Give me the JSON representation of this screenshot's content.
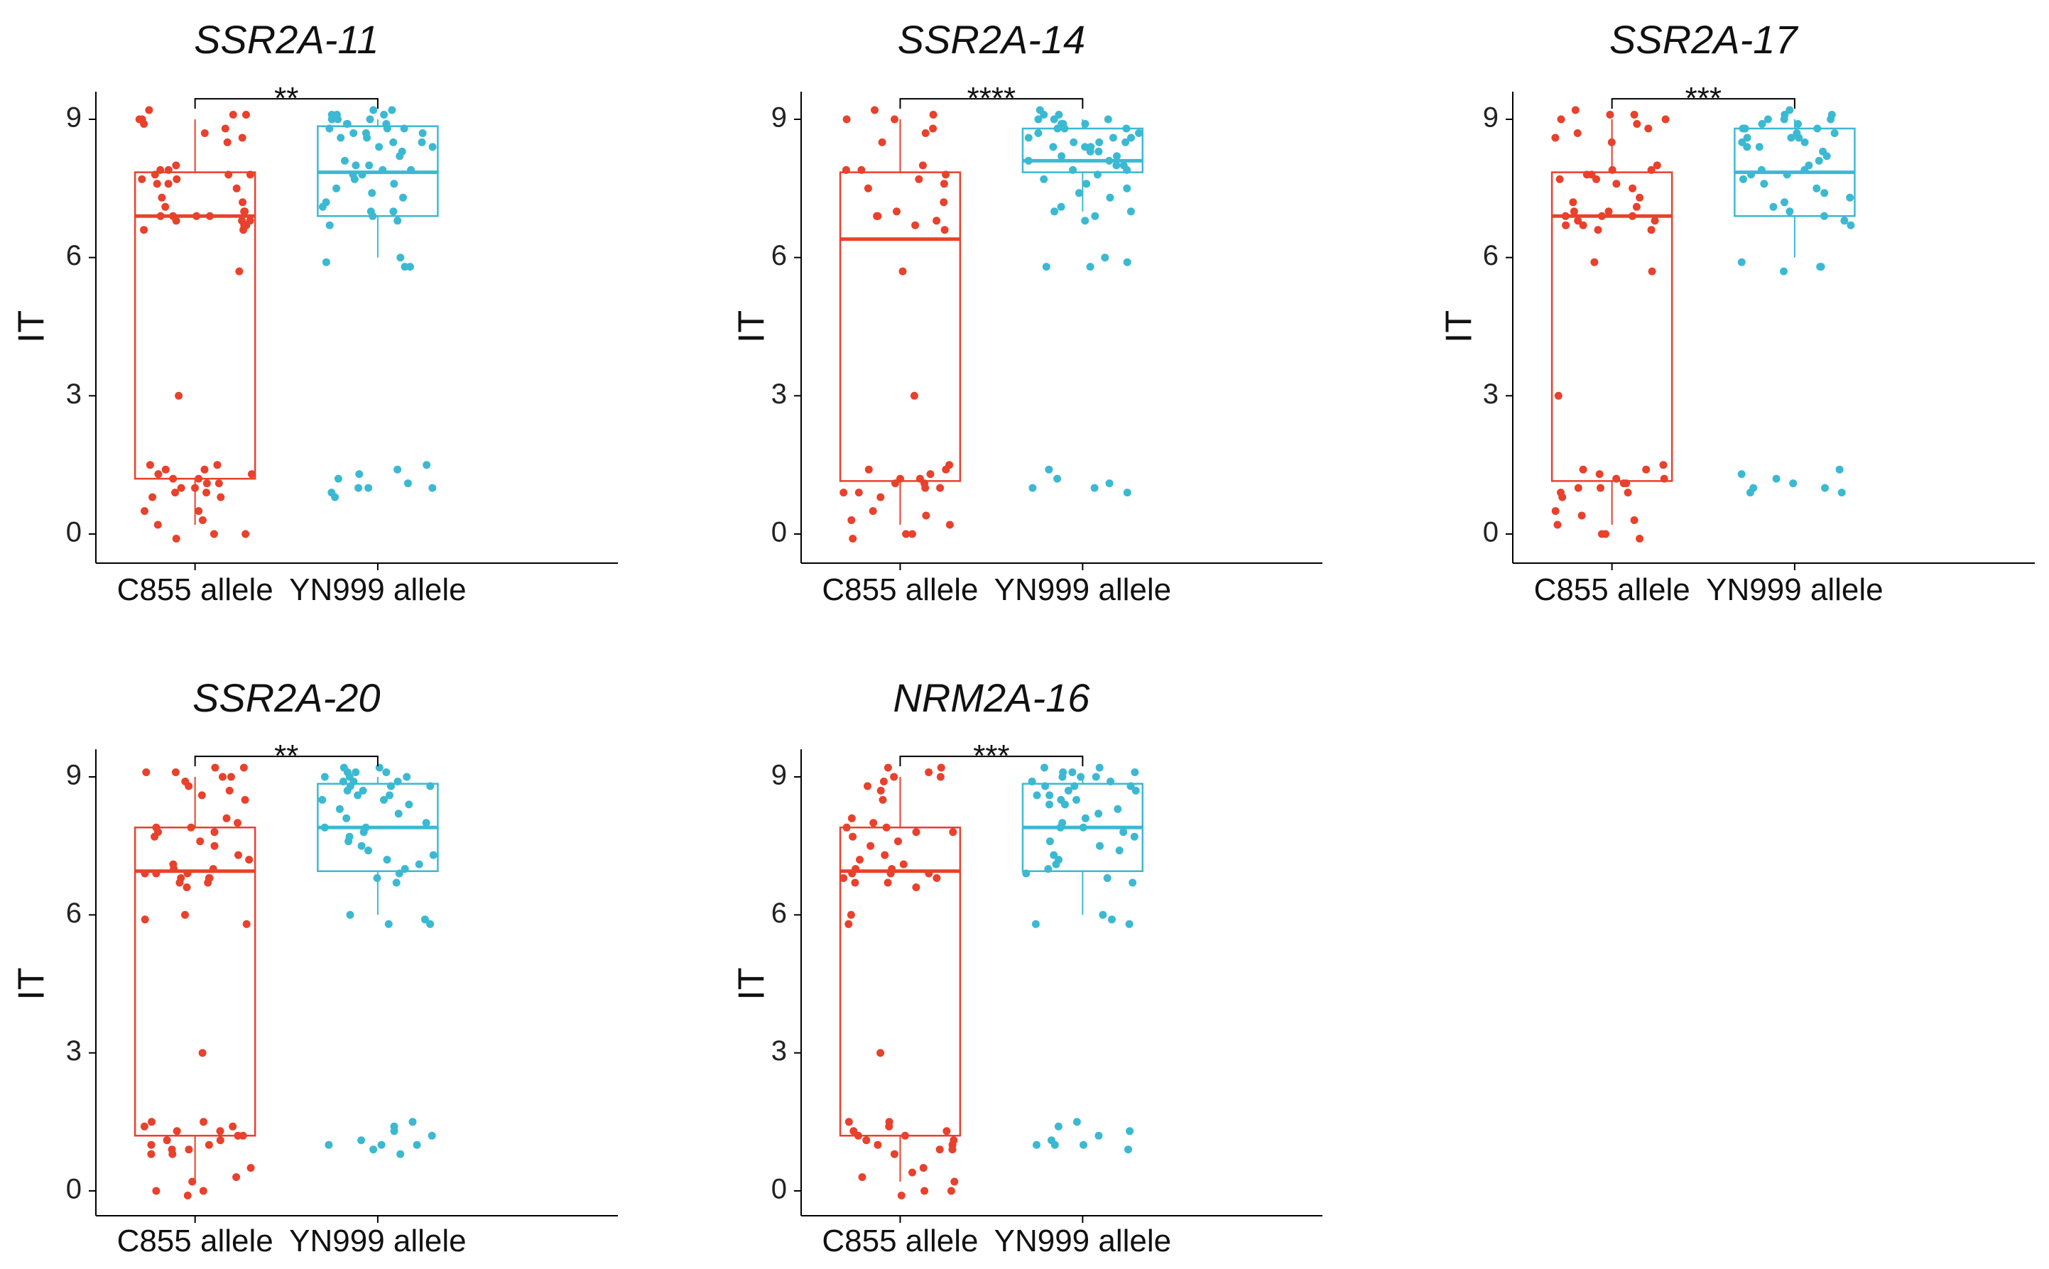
{
  "colors": {
    "c855": "#e8412c",
    "yn999": "#3cb9d2",
    "axis": "#000000"
  },
  "chart_data": [
    {
      "type": "box-jitter",
      "title": "SSR2A-11",
      "ylabel": "IT",
      "categories": [
        "C855 allele",
        "YN999 allele"
      ],
      "ylim": [
        -0.6,
        9.6
      ],
      "yticks": [
        0,
        3,
        6,
        9
      ],
      "significance": "**",
      "boxes": [
        {
          "name": "C855 allele",
          "min": 0.2,
          "q1": 1.2,
          "median": 6.9,
          "q3": 7.85,
          "max": 9.0
        },
        {
          "name": "YN999 allele",
          "min": 6.0,
          "q1": 6.9,
          "median": 7.85,
          "q3": 8.85,
          "max": 9.0
        }
      ],
      "points": [
        [
          9.2,
          9.1,
          9.1,
          9.0,
          9.0,
          8.9,
          8.8,
          8.7,
          8.6,
          8.5,
          8.0,
          7.9,
          7.9,
          7.8,
          7.8,
          7.8,
          7.7,
          7.7,
          7.6,
          7.6,
          7.5,
          7.3,
          7.2,
          7.1,
          7.0,
          7.0,
          6.9,
          6.9,
          6.9,
          6.9,
          6.8,
          6.8,
          6.8,
          6.7,
          6.7,
          6.6,
          6.6,
          5.7,
          3.0,
          1.5,
          1.5,
          1.4,
          1.4,
          1.3,
          1.3,
          1.2,
          1.2,
          1.1,
          1.1,
          1.0,
          1.0,
          0.9,
          0.9,
          0.8,
          0.8,
          0.5,
          0.5,
          0.3,
          0.2,
          0.0,
          0.0,
          -0.1
        ],
        [
          9.2,
          9.2,
          9.1,
          9.1,
          9.1,
          9.0,
          9.0,
          9.0,
          8.9,
          8.9,
          8.9,
          8.8,
          8.8,
          8.8,
          8.7,
          8.7,
          8.7,
          8.6,
          8.6,
          8.5,
          8.5,
          8.4,
          8.4,
          8.3,
          8.2,
          8.1,
          8.0,
          8.0,
          7.9,
          7.9,
          7.8,
          7.8,
          7.7,
          7.6,
          7.5,
          7.4,
          7.3,
          7.2,
          7.1,
          7.0,
          7.0,
          6.9,
          6.8,
          6.7,
          6.0,
          5.9,
          5.8,
          5.8,
          1.5,
          1.4,
          1.3,
          1.2,
          1.1,
          1.0,
          1.0,
          1.0,
          0.9,
          0.8
        ]
      ]
    },
    {
      "type": "box-jitter",
      "title": "SSR2A-14",
      "ylabel": "IT",
      "categories": [
        "C855 allele",
        "YN999 allele"
      ],
      "ylim": [
        -0.6,
        9.6
      ],
      "yticks": [
        0,
        3,
        6,
        9
      ],
      "significance": "****",
      "boxes": [
        {
          "name": "C855 allele",
          "min": 0.2,
          "q1": 1.15,
          "median": 6.4,
          "q3": 7.85,
          "max": 9.0
        },
        {
          "name": "YN999 allele",
          "min": 7.0,
          "q1": 7.85,
          "median": 8.1,
          "q3": 8.8,
          "max": 9.0
        }
      ],
      "points": [
        [
          9.2,
          9.1,
          9.0,
          9.0,
          8.8,
          8.7,
          8.5,
          8.0,
          7.9,
          7.9,
          7.8,
          7.7,
          7.6,
          7.5,
          7.2,
          7.0,
          6.9,
          6.9,
          6.8,
          6.7,
          6.6,
          5.7,
          3.0,
          1.5,
          1.4,
          1.4,
          1.3,
          1.2,
          1.2,
          1.1,
          1.1,
          1.0,
          1.0,
          0.9,
          0.9,
          0.8,
          0.5,
          0.4,
          0.3,
          0.2,
          0.0,
          0.0,
          -0.1
        ],
        [
          9.2,
          9.1,
          9.1,
          9.0,
          9.0,
          9.0,
          8.9,
          8.9,
          8.9,
          8.8,
          8.8,
          8.8,
          8.7,
          8.7,
          8.6,
          8.6,
          8.6,
          8.5,
          8.5,
          8.5,
          8.4,
          8.4,
          8.4,
          8.3,
          8.3,
          8.2,
          8.2,
          8.1,
          8.1,
          8.0,
          8.0,
          7.9,
          7.9,
          7.8,
          7.7,
          7.6,
          7.5,
          7.4,
          7.3,
          7.1,
          7.0,
          7.0,
          6.9,
          6.8,
          6.0,
          5.9,
          5.8,
          5.8,
          1.4,
          1.2,
          1.1,
          1.0,
          1.0,
          0.9
        ]
      ]
    },
    {
      "type": "box-jitter",
      "title": "SSR2A-17",
      "ylabel": "IT",
      "categories": [
        "C855 allele",
        "YN999 allele"
      ],
      "ylim": [
        -0.6,
        9.6
      ],
      "yticks": [
        0,
        3,
        6,
        9
      ],
      "significance": "***",
      "boxes": [
        {
          "name": "C855 allele",
          "min": 0.2,
          "q1": 1.15,
          "median": 6.9,
          "q3": 7.85,
          "max": 9.0
        },
        {
          "name": "YN999 allele",
          "min": 6.0,
          "q1": 6.9,
          "median": 7.85,
          "q3": 8.8,
          "max": 9.0
        }
      ],
      "points": [
        [
          9.2,
          9.1,
          9.1,
          9.0,
          9.0,
          8.9,
          8.8,
          8.7,
          8.6,
          8.5,
          8.0,
          7.9,
          7.9,
          7.8,
          7.8,
          7.7,
          7.7,
          7.6,
          7.5,
          7.3,
          7.2,
          7.1,
          7.0,
          7.0,
          6.9,
          6.9,
          6.9,
          6.8,
          6.8,
          6.7,
          6.7,
          6.6,
          6.6,
          5.9,
          5.7,
          3.0,
          1.5,
          1.4,
          1.4,
          1.3,
          1.2,
          1.2,
          1.1,
          1.1,
          1.0,
          1.0,
          0.9,
          0.9,
          0.8,
          0.5,
          0.4,
          0.3,
          0.2,
          0.0,
          0.0,
          -0.1
        ],
        [
          9.2,
          9.1,
          9.1,
          9.0,
          9.0,
          9.0,
          8.9,
          8.9,
          8.8,
          8.8,
          8.8,
          8.7,
          8.7,
          8.6,
          8.6,
          8.6,
          8.5,
          8.5,
          8.4,
          8.4,
          8.3,
          8.2,
          8.1,
          8.0,
          7.9,
          7.9,
          7.8,
          7.8,
          7.7,
          7.6,
          7.5,
          7.4,
          7.3,
          7.2,
          7.1,
          7.0,
          6.9,
          6.8,
          6.7,
          5.9,
          5.8,
          5.8,
          5.7,
          1.4,
          1.3,
          1.2,
          1.1,
          1.0,
          1.0,
          0.9,
          0.9
        ]
      ]
    },
    {
      "type": "box-jitter",
      "title": "SSR2A-20",
      "ylabel": "IT",
      "categories": [
        "C855 allele",
        "YN999 allele"
      ],
      "ylim": [
        -0.6,
        9.6
      ],
      "yticks": [
        0,
        3,
        6,
        9
      ],
      "significance": "**",
      "boxes": [
        {
          "name": "C855 allele",
          "min": 0.2,
          "q1": 1.2,
          "median": 6.95,
          "q3": 7.9,
          "max": 9.0
        },
        {
          "name": "YN999 allele",
          "min": 6.0,
          "q1": 6.95,
          "median": 7.9,
          "q3": 8.85,
          "max": 9.0
        }
      ],
      "points": [
        [
          9.2,
          9.2,
          9.1,
          9.1,
          9.0,
          9.0,
          8.9,
          8.8,
          8.7,
          8.6,
          8.5,
          8.1,
          8.0,
          7.9,
          7.9,
          7.8,
          7.8,
          7.7,
          7.6,
          7.5,
          7.3,
          7.2,
          7.1,
          7.0,
          7.0,
          6.9,
          6.9,
          6.9,
          6.8,
          6.8,
          6.8,
          6.7,
          6.7,
          6.6,
          6.0,
          5.9,
          5.8,
          3.0,
          1.5,
          1.5,
          1.4,
          1.4,
          1.3,
          1.3,
          1.2,
          1.2,
          1.1,
          1.1,
          1.0,
          1.0,
          0.9,
          0.9,
          0.8,
          0.8,
          0.5,
          0.3,
          0.2,
          0.0,
          0.0,
          -0.1
        ],
        [
          9.2,
          9.2,
          9.1,
          9.1,
          9.1,
          9.0,
          9.0,
          9.0,
          8.9,
          8.9,
          8.9,
          8.8,
          8.8,
          8.8,
          8.7,
          8.7,
          8.6,
          8.6,
          8.5,
          8.5,
          8.4,
          8.3,
          8.2,
          8.1,
          8.0,
          7.9,
          7.9,
          7.8,
          7.7,
          7.6,
          7.5,
          7.4,
          7.3,
          7.2,
          7.1,
          7.0,
          6.9,
          6.8,
          6.7,
          6.0,
          5.9,
          5.8,
          5.8,
          1.5,
          1.4,
          1.3,
          1.2,
          1.1,
          1.0,
          1.0,
          1.0,
          0.9,
          0.8
        ]
      ]
    },
    {
      "type": "box-jitter",
      "title": "NRM2A-16",
      "ylabel": "IT",
      "categories": [
        "C855 allele",
        "YN999 allele"
      ],
      "ylim": [
        -0.6,
        9.6
      ],
      "yticks": [
        0,
        3,
        6,
        9
      ],
      "significance": "***",
      "boxes": [
        {
          "name": "C855 allele",
          "min": 0.2,
          "q1": 1.2,
          "median": 6.95,
          "q3": 7.9,
          "max": 9.0
        },
        {
          "name": "YN999 allele",
          "min": 6.0,
          "q1": 6.95,
          "median": 7.9,
          "q3": 8.85,
          "max": 9.0
        }
      ],
      "points": [
        [
          9.2,
          9.2,
          9.1,
          9.0,
          9.0,
          8.9,
          8.8,
          8.7,
          8.5,
          8.1,
          8.0,
          7.9,
          7.9,
          7.8,
          7.8,
          7.7,
          7.6,
          7.5,
          7.3,
          7.2,
          7.1,
          7.0,
          7.0,
          6.9,
          6.9,
          6.9,
          6.8,
          6.8,
          6.7,
          6.7,
          6.6,
          6.0,
          5.8,
          3.0,
          1.5,
          1.5,
          1.4,
          1.3,
          1.3,
          1.2,
          1.2,
          1.1,
          1.1,
          1.0,
          1.0,
          0.9,
          0.9,
          0.8,
          0.5,
          0.4,
          0.3,
          0.2,
          0.0,
          0.0,
          -0.1
        ],
        [
          9.2,
          9.2,
          9.1,
          9.1,
          9.1,
          9.0,
          9.0,
          9.0,
          8.9,
          8.9,
          8.8,
          8.8,
          8.8,
          8.7,
          8.7,
          8.6,
          8.6,
          8.5,
          8.5,
          8.4,
          8.4,
          8.3,
          8.2,
          8.1,
          8.0,
          7.9,
          7.9,
          7.8,
          7.7,
          7.6,
          7.5,
          7.4,
          7.3,
          7.2,
          7.1,
          7.0,
          6.9,
          6.8,
          6.7,
          6.0,
          5.9,
          5.8,
          5.8,
          1.5,
          1.4,
          1.3,
          1.2,
          1.1,
          1.0,
          1.0,
          1.0,
          0.9
        ]
      ]
    }
  ]
}
